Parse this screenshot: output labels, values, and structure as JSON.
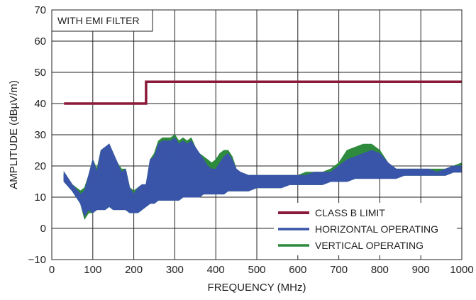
{
  "chart_data": {
    "type": "line",
    "title": "",
    "annotation": "WITH EMI FILTER",
    "xlabel": "FREQUENCY (MHz)",
    "ylabel": "AMPLITUDE (dBµV/m)",
    "xlim": [
      0,
      1000
    ],
    "ylim": [
      -10,
      70
    ],
    "xticks": [
      "0",
      "100",
      "200",
      "300",
      "400",
      "500",
      "600",
      "700",
      "800",
      "900",
      "1000"
    ],
    "yticks": [
      "−10",
      "0",
      "10",
      "20",
      "30",
      "40",
      "50",
      "60",
      "70"
    ],
    "grid": true,
    "legend_position": "bottom-right",
    "series": [
      {
        "name": "CLASS B LIMIT",
        "color": "#8b1a3a",
        "style": "step",
        "x": [
          30,
          230,
          230,
          1000
        ],
        "y": [
          40,
          40,
          47,
          47
        ]
      },
      {
        "name": "HORIZONTAL OPERATING",
        "color": "#3a55a8",
        "style": "band",
        "x": [
          30,
          50,
          70,
          80,
          90,
          100,
          110,
          120,
          130,
          140,
          150,
          160,
          170,
          180,
          190,
          200,
          210,
          220,
          230,
          240,
          250,
          260,
          270,
          280,
          290,
          300,
          310,
          320,
          330,
          340,
          350,
          360,
          370,
          380,
          390,
          400,
          410,
          420,
          430,
          440,
          450,
          460,
          480,
          500,
          520,
          540,
          560,
          580,
          600,
          620,
          640,
          660,
          680,
          700,
          720,
          740,
          760,
          780,
          800,
          820,
          840,
          860,
          880,
          900,
          920,
          940,
          960,
          980,
          1000
        ],
        "upper": [
          18,
          14,
          11,
          12,
          17,
          22,
          18,
          25,
          26,
          27,
          24,
          21,
          18,
          19,
          13,
          11,
          13,
          14,
          14,
          22,
          23,
          27,
          28,
          28,
          28,
          29,
          27,
          28,
          27,
          28,
          26,
          24,
          22,
          20,
          19,
          19,
          21,
          23,
          24,
          22,
          19,
          18,
          17,
          17,
          17,
          17,
          17,
          17,
          17,
          17,
          18,
          18,
          18,
          20,
          22,
          23,
          24,
          25,
          24,
          21,
          19,
          19,
          19,
          19,
          19,
          18,
          19,
          20,
          20
        ],
        "lower": [
          15,
          12,
          8,
          4,
          6,
          5,
          6,
          6,
          6,
          7,
          6,
          6,
          6,
          6,
          5,
          5,
          5,
          6,
          7,
          8,
          8,
          9,
          9,
          9,
          9,
          9,
          9,
          10,
          10,
          10,
          10,
          10,
          11,
          11,
          11,
          11,
          11,
          11,
          12,
          12,
          12,
          12,
          12,
          13,
          13,
          13,
          13,
          14,
          14,
          14,
          14,
          14,
          15,
          15,
          15,
          16,
          16,
          16,
          16,
          16,
          16,
          17,
          17,
          17,
          17,
          17,
          17,
          18,
          18
        ]
      },
      {
        "name": "VERTICAL OPERATING",
        "color": "#2e8b3e",
        "style": "band",
        "x": [
          30,
          50,
          70,
          80,
          90,
          100,
          110,
          120,
          130,
          140,
          150,
          160,
          170,
          180,
          190,
          200,
          210,
          220,
          230,
          240,
          250,
          260,
          270,
          280,
          290,
          300,
          310,
          320,
          330,
          340,
          350,
          360,
          370,
          380,
          390,
          400,
          410,
          420,
          430,
          440,
          450,
          460,
          480,
          500,
          520,
          540,
          560,
          580,
          600,
          620,
          640,
          660,
          680,
          700,
          720,
          740,
          760,
          780,
          800,
          820,
          840,
          860,
          880,
          900,
          920,
          940,
          960,
          980,
          1000
        ],
        "upper": [
          18,
          14,
          12,
          13,
          17,
          22,
          19,
          25,
          26,
          27,
          24,
          21,
          19,
          19,
          13,
          12,
          13,
          14,
          14,
          22,
          24,
          28,
          29,
          29,
          29,
          30,
          28,
          29,
          28,
          29,
          26,
          24,
          23,
          22,
          21,
          22,
          24,
          25,
          25,
          23,
          19,
          18,
          17,
          17,
          17,
          17,
          17,
          17,
          17,
          18,
          18,
          18,
          19,
          21,
          25,
          26,
          27,
          27,
          25,
          21,
          19,
          19,
          19,
          19,
          19,
          19,
          19,
          20,
          21
        ],
        "lower": [
          15,
          12,
          8,
          3,
          5,
          5,
          6,
          6,
          6,
          7,
          6,
          6,
          6,
          6,
          5,
          5,
          5,
          6,
          7,
          8,
          8,
          9,
          9,
          9,
          9,
          9,
          9,
          10,
          10,
          10,
          10,
          10,
          11,
          11,
          11,
          11,
          11,
          11,
          12,
          12,
          12,
          12,
          12,
          13,
          13,
          13,
          13,
          14,
          14,
          14,
          14,
          14,
          15,
          15,
          15,
          16,
          16,
          16,
          16,
          16,
          16,
          17,
          17,
          17,
          17,
          17,
          17,
          18,
          18
        ]
      }
    ]
  }
}
